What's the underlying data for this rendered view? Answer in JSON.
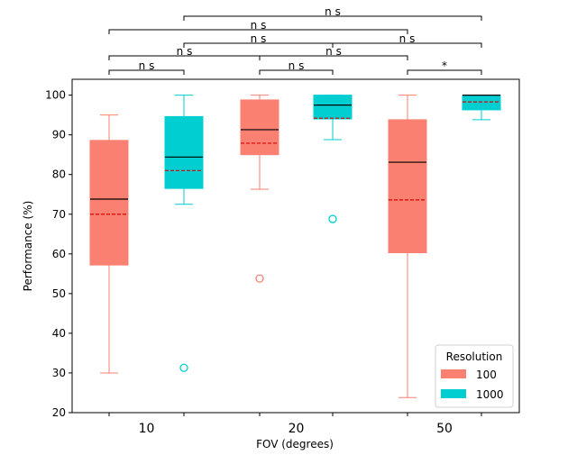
{
  "chart_data": {
    "type": "boxplot",
    "title": "",
    "xlabel": "FOV (degrees)",
    "ylabel": "Performance (%)",
    "ylim": [
      20,
      104
    ],
    "yticks": [
      20,
      30,
      40,
      50,
      60,
      70,
      80,
      90,
      100
    ],
    "categories": [
      "10",
      "20",
      "50"
    ],
    "grid": false,
    "legend": {
      "title": "Resolution",
      "position": "lower-right",
      "entries": [
        "100",
        "1000"
      ]
    },
    "series": [
      {
        "name": "100",
        "color": "#fa8072",
        "boxes": [
          {
            "category": "10",
            "whisker_low": 30,
            "q1": 57.2,
            "median": 73.8,
            "mean": 70,
            "q3": 88.6,
            "whisker_high": 95,
            "outliers": []
          },
          {
            "category": "20",
            "whisker_low": 76.3,
            "q1": 85,
            "median": 91.3,
            "mean": 87.9,
            "q3": 98.8,
            "whisker_high": 100,
            "outliers": [
              53.8
            ]
          },
          {
            "category": "50",
            "whisker_low": 23.8,
            "q1": 60.3,
            "median": 83.1,
            "mean": 73.6,
            "q3": 93.8,
            "whisker_high": 100,
            "outliers": []
          }
        ]
      },
      {
        "name": "1000",
        "color": "#00ced1",
        "boxes": [
          {
            "category": "10",
            "whisker_low": 72.5,
            "q1": 76.5,
            "median": 84.4,
            "mean": 81,
            "q3": 94.6,
            "whisker_high": 100,
            "outliers": [
              31.3
            ]
          },
          {
            "category": "20",
            "whisker_low": 88.8,
            "q1": 94,
            "median": 97.5,
            "mean": 94.2,
            "q3": 100,
            "whisker_high": 100,
            "outliers": [
              68.8
            ]
          },
          {
            "category": "50",
            "whisker_low": 93.8,
            "q1": 96.3,
            "median": 100,
            "mean": 98.3,
            "q3": 100,
            "whisker_high": 100,
            "outliers": []
          }
        ]
      }
    ],
    "significance": [
      {
        "from": [
          0,
          0
        ],
        "to": [
          0,
          1
        ],
        "label": "ns",
        "level": 0
      },
      {
        "from": [
          1,
          0
        ],
        "to": [
          1,
          1
        ],
        "label": "ns",
        "level": 0
      },
      {
        "from": [
          2,
          0
        ],
        "to": [
          2,
          1
        ],
        "label": "*",
        "level": 0
      },
      {
        "from": [
          0,
          0
        ],
        "to": [
          1,
          0
        ],
        "label": "ns",
        "level": 1
      },
      {
        "from": [
          1,
          0
        ],
        "to": [
          2,
          0
        ],
        "label": "ns",
        "level": 1
      },
      {
        "from": [
          0,
          1
        ],
        "to": [
          1,
          1
        ],
        "label": "ns",
        "level": 2
      },
      {
        "from": [
          1,
          1
        ],
        "to": [
          2,
          1
        ],
        "label": "ns",
        "level": 2
      },
      {
        "from": [
          0,
          0
        ],
        "to": [
          2,
          0
        ],
        "label": "ns",
        "level": 3
      },
      {
        "from": [
          0,
          1
        ],
        "to": [
          2,
          1
        ],
        "label": "ns",
        "level": 4
      }
    ]
  }
}
